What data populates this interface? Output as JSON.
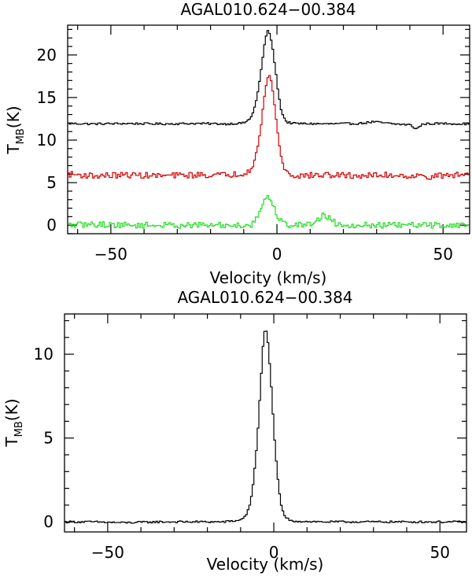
{
  "chart_data": [
    {
      "type": "line",
      "title": "AGAL010.624−00.384",
      "xlabel": "Velocity (km/s)",
      "ylabel_main": "T",
      "ylabel_sub": "MB",
      "ylabel_unit": "(K)",
      "xlim": [
        -63,
        58
      ],
      "ylim": [
        -1,
        23.5
      ],
      "xticks_major": [
        -50,
        0,
        50
      ],
      "xtick_labels": [
        "−50",
        "0",
        "50"
      ],
      "yticks_major": [
        0,
        5,
        10,
        15,
        20
      ],
      "ytick_labels": [
        "0",
        "5",
        "10",
        "15",
        "20"
      ],
      "grid": false,
      "series": [
        {
          "color": "#000000",
          "style": "steps",
          "peak_velocity": -2.8,
          "values": [
            [
              -63,
              11.95
            ],
            [
              -55,
              11.9
            ],
            [
              -45,
              11.95
            ],
            [
              -35,
              11.9
            ],
            [
              -25,
              11.95
            ],
            [
              -15,
              11.9
            ],
            [
              -10,
              12.0
            ],
            [
              -8,
              12.5
            ],
            [
              -7,
              13.5
            ],
            [
              -6,
              15.0
            ],
            [
              -5,
              17.5
            ],
            [
              -4,
              20.5
            ],
            [
              -3,
              22.9
            ],
            [
              -2,
              22.4
            ],
            [
              -1,
              20.0
            ],
            [
              0,
              16.8
            ],
            [
              1,
              14.0
            ],
            [
              2,
              12.7
            ],
            [
              3,
              12.1
            ],
            [
              5,
              11.95
            ],
            [
              15,
              11.9
            ],
            [
              25,
              11.95
            ],
            [
              29,
              12.15
            ],
            [
              35,
              11.9
            ],
            [
              40,
              11.8
            ],
            [
              42,
              11.3
            ],
            [
              44,
              11.9
            ],
            [
              50,
              11.95
            ],
            [
              58,
              11.9
            ]
          ]
        },
        {
          "color": "#d40000",
          "style": "steps",
          "peak_velocity": -2.6,
          "values": [
            [
              -63,
              6.0
            ],
            [
              -55,
              5.8
            ],
            [
              -45,
              5.9
            ],
            [
              -35,
              5.8
            ],
            [
              -25,
              5.9
            ],
            [
              -15,
              5.9
            ],
            [
              -10,
              6.1
            ],
            [
              -8,
              6.6
            ],
            [
              -7,
              7.4
            ],
            [
              -6,
              8.7
            ],
            [
              -5,
              11.0
            ],
            [
              -4,
              14.2
            ],
            [
              -3,
              17.4
            ],
            [
              -2,
              17.7
            ],
            [
              -1,
              15.0
            ],
            [
              0,
              11.5
            ],
            [
              1,
              8.6
            ],
            [
              2,
              6.9
            ],
            [
              3,
              6.2
            ],
            [
              5,
              5.8
            ],
            [
              15,
              5.9
            ],
            [
              25,
              5.8
            ],
            [
              35,
              5.9
            ],
            [
              45,
              5.7
            ],
            [
              58,
              6.0
            ]
          ]
        },
        {
          "color": "#22dd22",
          "style": "steps",
          "peak_velocity": -2.5,
          "values": [
            [
              -63,
              0.0
            ],
            [
              -55,
              0.1
            ],
            [
              -45,
              0.0
            ],
            [
              -35,
              0.0
            ],
            [
              -25,
              0.0
            ],
            [
              -15,
              0.0
            ],
            [
              -8,
              0.0
            ],
            [
              -6,
              0.8
            ],
            [
              -5,
              1.8
            ],
            [
              -4,
              2.9
            ],
            [
              -3,
              3.5
            ],
            [
              -2,
              3.0
            ],
            [
              -1,
              2.1
            ],
            [
              0,
              1.2
            ],
            [
              1,
              0.7
            ],
            [
              2,
              0.3
            ],
            [
              3,
              0.0
            ],
            [
              10,
              0.1
            ],
            [
              14,
              1.2
            ],
            [
              16,
              0.8
            ],
            [
              18,
              0.1
            ],
            [
              25,
              0.0
            ],
            [
              35,
              0.0
            ],
            [
              45,
              0.0
            ],
            [
              58,
              0.0
            ]
          ]
        }
      ]
    },
    {
      "type": "line",
      "title": "AGAL010.624−00.384",
      "xlabel": "Velocity (km/s)",
      "ylabel_main": "T",
      "ylabel_sub": "MB",
      "ylabel_unit": "(K)",
      "xlim": [
        -63,
        58
      ],
      "ylim": [
        -0.6,
        12.4
      ],
      "xticks_major": [
        -50,
        0,
        50
      ],
      "xtick_labels": [
        "−50",
        "0",
        "50"
      ],
      "yticks_major": [
        0,
        5,
        10
      ],
      "ytick_labels": [
        "0",
        "5",
        "10"
      ],
      "grid": false,
      "series": [
        {
          "color": "#000000",
          "style": "steps",
          "peak_velocity": -2.7,
          "values": [
            [
              -63,
              0.0
            ],
            [
              -55,
              0.0
            ],
            [
              -45,
              -0.05
            ],
            [
              -35,
              0.0
            ],
            [
              -25,
              0.0
            ],
            [
              -15,
              0.0
            ],
            [
              -10,
              0.1
            ],
            [
              -8,
              0.5
            ],
            [
              -7,
              1.2
            ],
            [
              -6,
              2.6
            ],
            [
              -5,
              4.8
            ],
            [
              -4,
              8.0
            ],
            [
              -3,
              11.3
            ],
            [
              -2,
              11.4
            ],
            [
              -1,
              8.8
            ],
            [
              0,
              5.6
            ],
            [
              1,
              2.9
            ],
            [
              2,
              1.2
            ],
            [
              3,
              0.4
            ],
            [
              5,
              0.05
            ],
            [
              15,
              0.0
            ],
            [
              25,
              0.0
            ],
            [
              35,
              0.0
            ],
            [
              45,
              0.0
            ],
            [
              58,
              0.0
            ]
          ]
        }
      ]
    }
  ]
}
